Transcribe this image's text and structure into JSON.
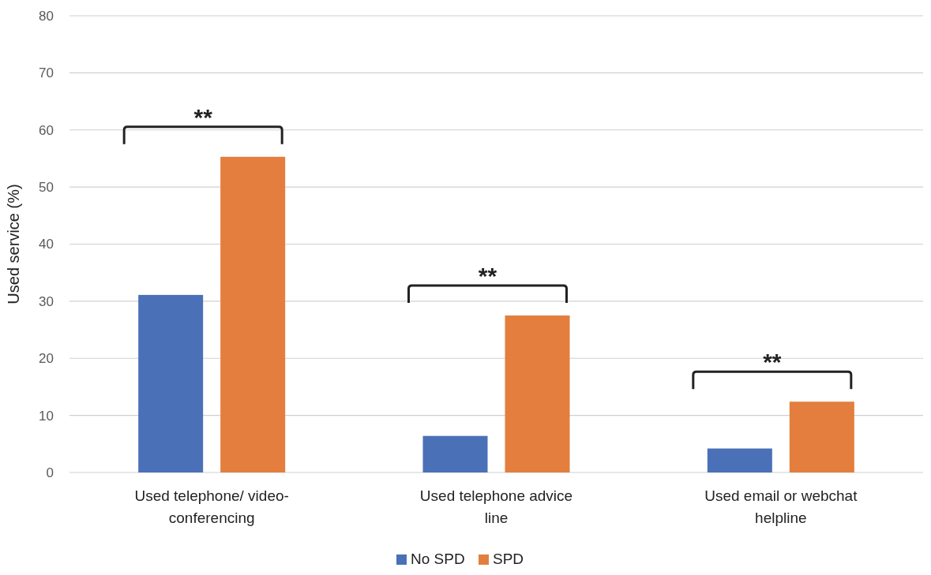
{
  "chart_data": {
    "type": "bar",
    "ylabel": "Used service (%)",
    "categories": [
      "Used telephone/ video-conferencing",
      "Used telephone advice line",
      "Used email or webchat helpline"
    ],
    "series": [
      {
        "name": "No SPD",
        "color": "#4a70b7",
        "values": [
          31.1,
          6.4,
          4.2
        ]
      },
      {
        "name": "SPD",
        "color": "#e37e3e",
        "values": [
          55.3,
          27.5,
          12.4
        ]
      }
    ],
    "ylim": [
      0,
      80
    ],
    "yticks": [
      0,
      10,
      20,
      30,
      40,
      50,
      60,
      70,
      80
    ],
    "grid": "y",
    "legend": "bottom",
    "annotations": [
      "**",
      "**",
      "**"
    ]
  }
}
